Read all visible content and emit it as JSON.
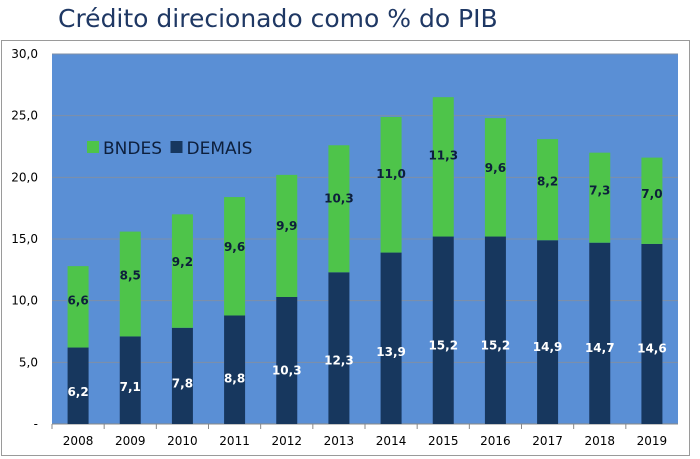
{
  "title": "Crédito direcionado como % do PIB",
  "chart_data": {
    "type": "bar",
    "stacked": true,
    "title": "Crédito direcionado como % do PIB",
    "xlabel": "",
    "ylabel": "",
    "categories": [
      "2008",
      "2009",
      "2010",
      "2011",
      "2012",
      "2013",
      "2014",
      "2015",
      "2016",
      "2017",
      "2018",
      "2019"
    ],
    "series": [
      {
        "name": "DEMAIS",
        "color": "#17375e",
        "label_color": "#ffffff",
        "values": [
          6.2,
          7.1,
          7.8,
          8.8,
          10.3,
          12.3,
          13.9,
          15.2,
          15.2,
          14.9,
          14.7,
          14.6
        ],
        "labels": [
          "6,2",
          "7,1",
          "7,8",
          "8,8",
          "10,3",
          "12,3",
          "13,9",
          "15,2",
          "15,2",
          "14,9",
          "14,7",
          "14,6"
        ]
      },
      {
        "name": "BNDES",
        "color": "#4ec44a",
        "label_color": "#0d1f3c",
        "values": [
          6.6,
          8.5,
          9.2,
          9.6,
          9.9,
          10.3,
          11.0,
          11.3,
          9.6,
          8.2,
          7.3,
          7.0
        ],
        "labels": [
          "6,6",
          "8,5",
          "9,2",
          "9,6",
          "9,9",
          "10,3",
          "11,0",
          "11,3",
          "9,6",
          "8,2",
          "7,3",
          "7,0"
        ]
      }
    ],
    "ylim": [
      0,
      30
    ],
    "yticks": [
      0,
      5,
      10,
      15,
      20,
      25,
      30
    ],
    "ytick_labels": [
      "-",
      "5,0",
      "10,0",
      "15,0",
      "20,0",
      "25,0",
      "30,0"
    ],
    "grid": true,
    "plot_background": "#5a8fd5",
    "legend": {
      "placement": "top-left",
      "entries": [
        "BNDES",
        "DEMAIS"
      ]
    }
  }
}
